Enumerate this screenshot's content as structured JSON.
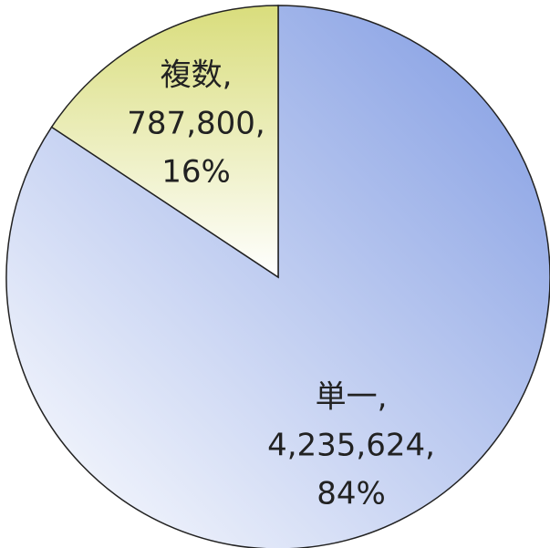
{
  "chart_data": {
    "type": "pie",
    "categories": [
      "単一,",
      "複数,"
    ],
    "values": [
      4235624,
      787800
    ],
    "value_labels": [
      "4,235,624,",
      "787,800,"
    ],
    "percent_labels": [
      "84%",
      "16%"
    ],
    "colors": [
      "#7f9ae2",
      "#d9dd7c"
    ]
  }
}
